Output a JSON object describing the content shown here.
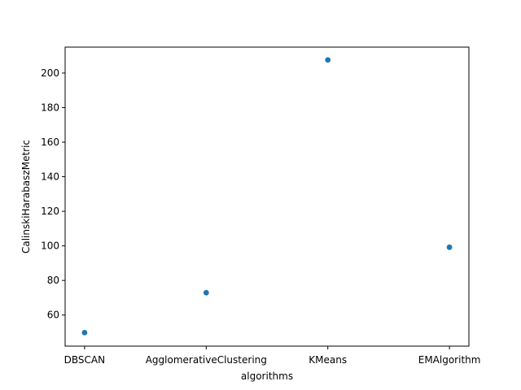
{
  "chart_data": {
    "type": "scatter",
    "title": "",
    "xlabel": "algorithms",
    "ylabel": "CalinskiHarabaszMetric",
    "categories": [
      "DBSCAN",
      "AgglomerativeClustering",
      "KMeans",
      "EMAlgorithm"
    ],
    "values": [
      49.8,
      72.9,
      207.6,
      99.2
    ],
    "ylim": [
      42,
      215
    ],
    "yticks": [
      60,
      80,
      100,
      120,
      140,
      160,
      180,
      200
    ],
    "grid": false,
    "marker_color": "#1f77b4"
  }
}
